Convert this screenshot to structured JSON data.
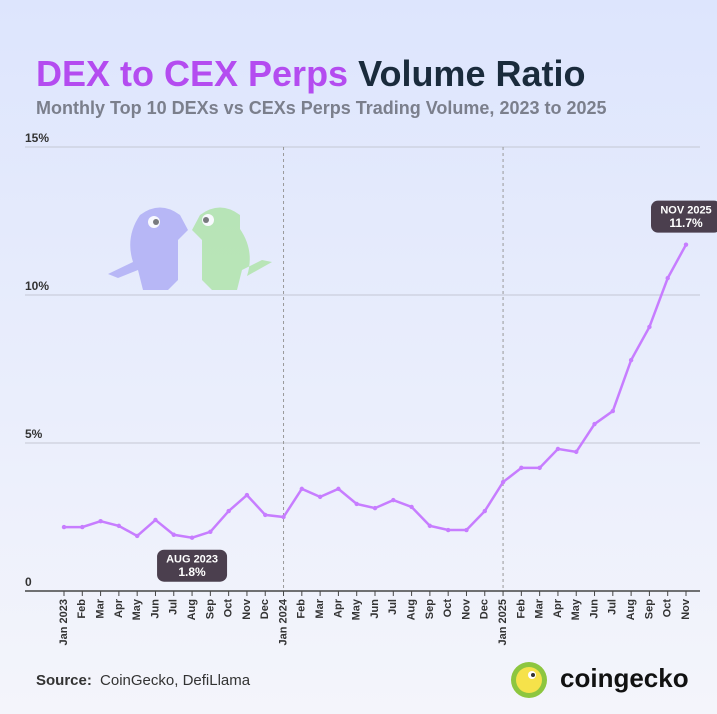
{
  "chart_data": {
    "type": "line",
    "title_parts": [
      "DEX to CEX Perps",
      "Volume Ratio"
    ],
    "title_colors": [
      "#b44cf0",
      "#1a2b3c"
    ],
    "subtitle": "Monthly Top 10 DEXs vs CEXs Perps Trading Volume, 2023 to 2025",
    "categories": [
      "Jan 2023",
      "Feb",
      "Mar",
      "Apr",
      "May",
      "Jun",
      "Jul",
      "Aug",
      "Sep",
      "Oct",
      "Nov",
      "Dec",
      "Jan 2024",
      "Feb",
      "Mar",
      "Apr",
      "May",
      "Jun",
      "Jul",
      "Aug",
      "Sep",
      "Oct",
      "Nov",
      "Dec",
      "Jan 2025",
      "Feb",
      "Mar",
      "Apr",
      "May",
      "Jun",
      "Jul",
      "Aug",
      "Sep",
      "Oct",
      "Nov"
    ],
    "values": [
      2.16,
      2.16,
      2.36,
      2.2,
      1.86,
      2.4,
      1.9,
      1.8,
      2.0,
      2.7,
      3.24,
      2.57,
      2.5,
      3.45,
      3.18,
      3.45,
      2.94,
      2.8,
      3.07,
      2.84,
      2.2,
      2.06,
      2.06,
      2.7,
      3.68,
      4.16,
      4.16,
      4.8,
      4.7,
      5.64,
      6.08,
      7.8,
      8.92,
      10.57,
      11.7
    ],
    "color": "#c77dff",
    "ylim": [
      0,
      15
    ],
    "yticks": [
      0,
      {
        "value": 5,
        "label": "5%"
      },
      {
        "value": 10,
        "label": "10%"
      },
      {
        "value": 15,
        "label": "15%"
      }
    ],
    "grid": true,
    "annotations": [
      {
        "index": 7,
        "label": "AUG 2023",
        "value_label": "1.8%",
        "position": "below"
      },
      {
        "index": 34,
        "label": "NOV 2025",
        "value_label": "11.7%",
        "position": "above"
      }
    ],
    "source_label": "Source:",
    "source": "CoinGecko, DefiLlama",
    "brand": "coingecko"
  }
}
